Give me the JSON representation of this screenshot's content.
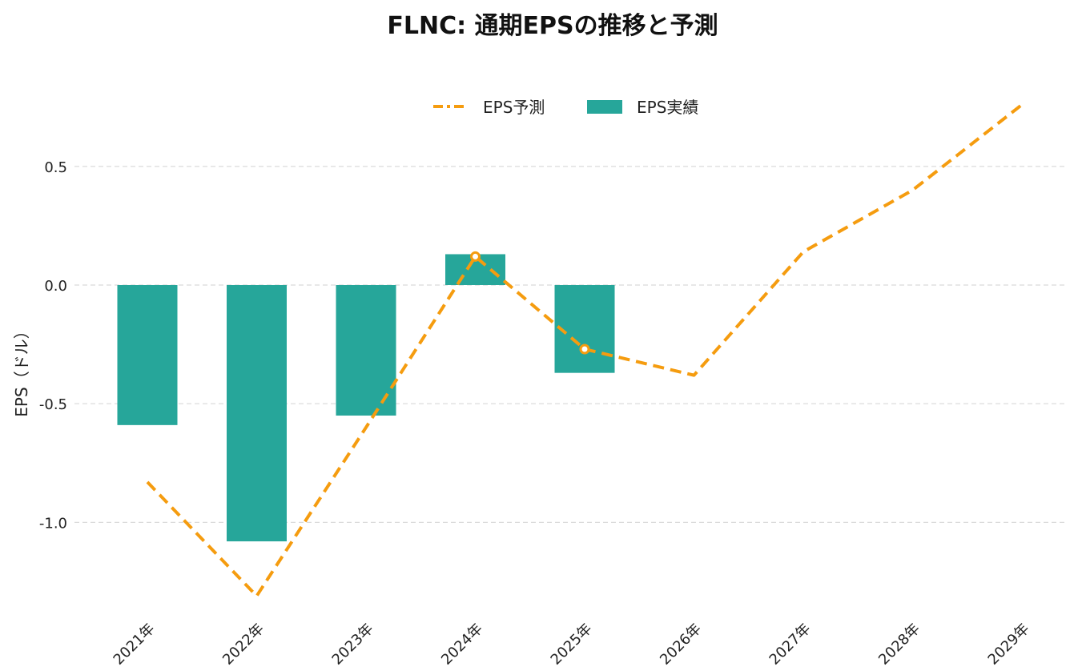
{
  "chart_data": {
    "type": "bar",
    "title": "FLNC: 通期EPSの推移と予測",
    "ylabel": "EPS（ドル）",
    "xlabel": "",
    "categories": [
      "2021年",
      "2022年",
      "2023年",
      "2024年",
      "2025年",
      "2026年",
      "2027年",
      "2028年",
      "2029年"
    ],
    "ylim": [
      -1.38,
      0.83
    ],
    "yticks": [
      {
        "value": 0.5,
        "label": "0.5"
      },
      {
        "value": 0.0,
        "label": "0.0"
      },
      {
        "value": -0.5,
        "label": "-0.5"
      },
      {
        "value": -1.0,
        "label": "-1.0"
      }
    ],
    "grid": "horizontal dashed",
    "legend_position": "top-center",
    "series": [
      {
        "name": "EPS予測",
        "kind": "line",
        "style": "dashed",
        "color": "#f59c0f",
        "values": [
          -0.83,
          -1.31,
          -0.6,
          0.12,
          -0.27,
          -0.38,
          0.14,
          0.4,
          0.76
        ],
        "marked_points": [
          3,
          4
        ]
      },
      {
        "name": "EPS実績",
        "kind": "bar",
        "color": "#26a69a",
        "values": [
          -0.59,
          -1.08,
          -0.55,
          0.13,
          -0.37,
          null,
          null,
          null,
          null
        ]
      }
    ]
  }
}
